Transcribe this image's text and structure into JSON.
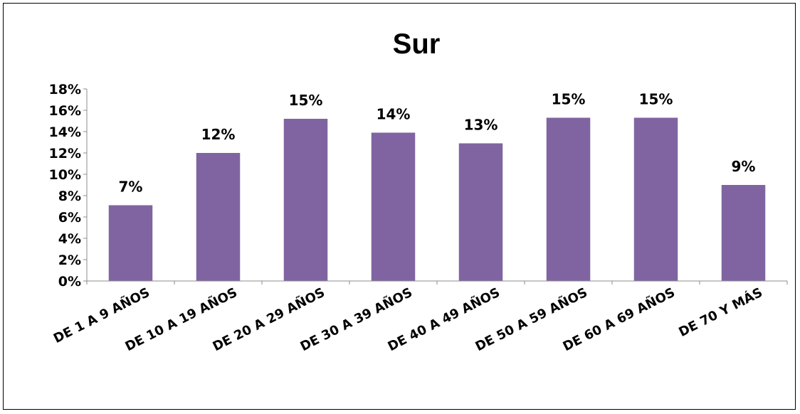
{
  "chart_data": {
    "type": "bar",
    "title": "Sur",
    "xlabel": "",
    "ylabel": "",
    "categories": [
      "DE 1 A 9 AÑOS",
      "DE 10 A 19 AÑOS",
      "DE 20 A 29 AÑOS",
      "DE 30 A 39 AÑOS",
      "DE 40 A 49 AÑOS",
      "DE 50 A 59 AÑOS",
      "DE 60 A 69 AÑOS",
      "DE 70 Y MÁS"
    ],
    "values": [
      7.1,
      12.0,
      15.2,
      13.9,
      12.9,
      15.3,
      15.3,
      9.0
    ],
    "data_labels": [
      "7%",
      "12%",
      "15%",
      "14%",
      "13%",
      "15%",
      "15%",
      "9%"
    ],
    "yticks": [
      "0%",
      "2%",
      "4%",
      "6%",
      "8%",
      "10%",
      "12%",
      "14%",
      "16%",
      "18%"
    ],
    "ylim": [
      0,
      18
    ],
    "grid": false,
    "legend": "none",
    "bar_color": "#8064a2"
  }
}
